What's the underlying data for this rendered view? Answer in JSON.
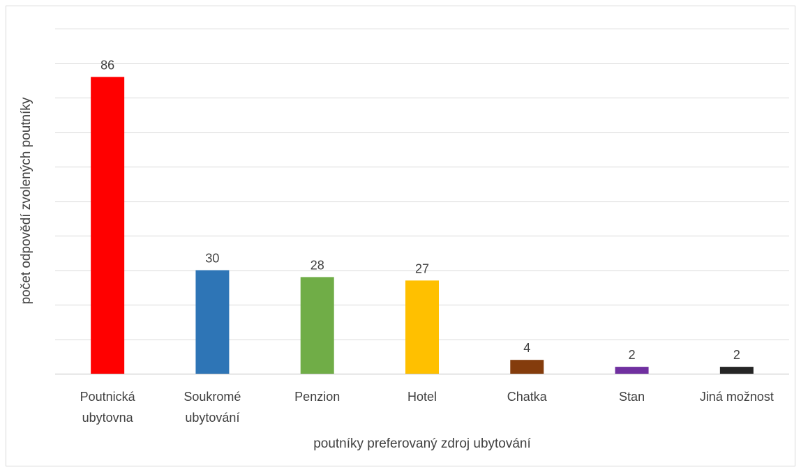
{
  "chart_data": {
    "type": "bar",
    "categories": [
      [
        "Poutnická",
        "ubytovna"
      ],
      [
        "Soukromé",
        "ubytování"
      ],
      [
        "Penzion"
      ],
      [
        "Hotel"
      ],
      [
        "Chatka"
      ],
      [
        "Stan"
      ],
      [
        "Jiná možnost"
      ]
    ],
    "values": [
      86,
      30,
      28,
      27,
      4,
      2,
      2
    ],
    "colors": [
      "#ff0000",
      "#2e75b6",
      "#70ad47",
      "#ffc000",
      "#843c0c",
      "#7030a0",
      "#262626"
    ],
    "xlabel": "poutníky preferovaný zdroj ubytování",
    "ylabel": "počet odpovědí zvolených poutníky",
    "ylim": [
      0,
      100
    ],
    "grid": true,
    "data_labels": true
  }
}
